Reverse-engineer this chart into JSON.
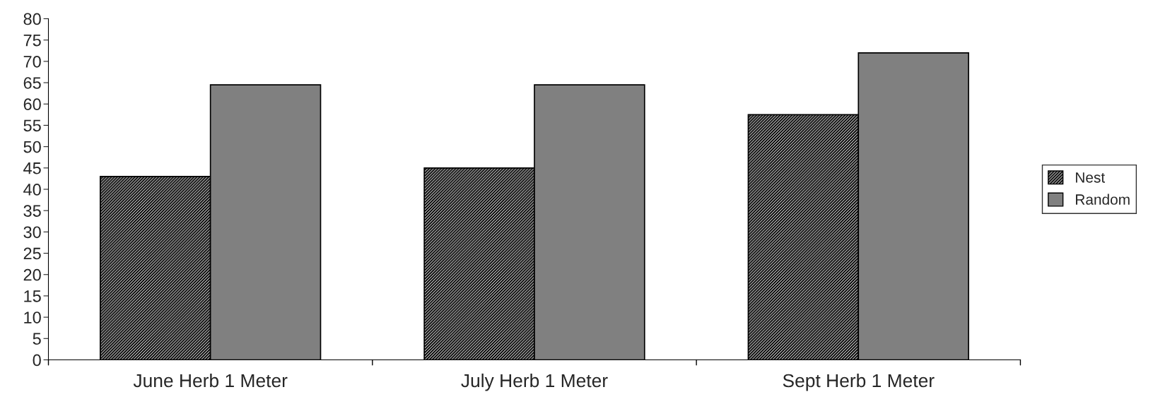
{
  "chart_data": {
    "type": "bar",
    "categories": [
      "June Herb 1 Meter",
      "July Herb 1 Meter",
      "Sept Herb 1 Meter"
    ],
    "series": [
      {
        "name": "Nest",
        "color": "#000000",
        "values": [
          43,
          45,
          57.5
        ]
      },
      {
        "name": "Random",
        "color": "#808080",
        "values": [
          64.5,
          64.5,
          72
        ]
      }
    ],
    "ylim": [
      0,
      80
    ],
    "yticks": [
      0,
      5,
      10,
      15,
      20,
      25,
      30,
      35,
      40,
      45,
      50,
      55,
      60,
      65,
      70,
      75,
      80
    ],
    "grid": false,
    "legend": "right"
  }
}
